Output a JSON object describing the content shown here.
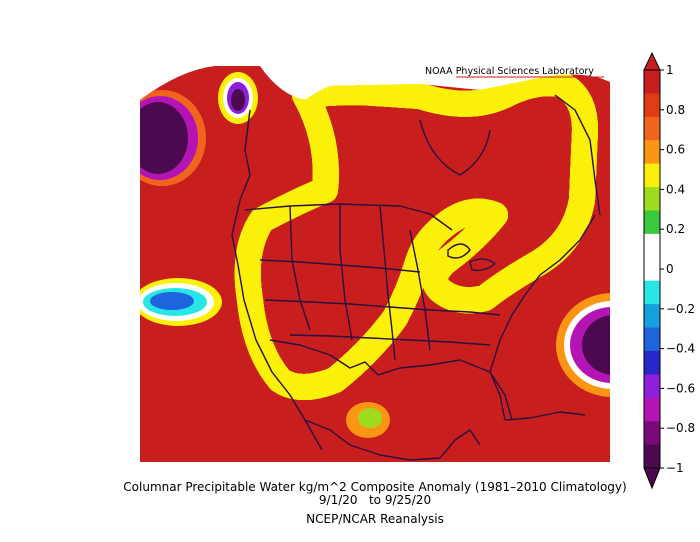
{
  "figure": {
    "lab_credit": "NOAA Physical Sciences Laboratory",
    "title": "Columnar Precipitable Water kg/m^2 Composite Anomaly (1981–2010 Climatology)",
    "date_range": "9/1/20   to 9/25/20",
    "source": "NCEP/NCAR Reanalysis"
  },
  "colorbar": {
    "range": [
      -1,
      1
    ],
    "tick_labels": [
      "1",
      "0.8",
      "0.6",
      "0.4",
      "0.2",
      "0",
      "−0.2",
      "−0.4",
      "−0.6",
      "−0.8",
      "−1"
    ],
    "colors_top_to_bottom": [
      "#c81e1e",
      "#e03c14",
      "#f0641e",
      "#fa9614",
      "#faf00a",
      "#a0dc1e",
      "#3cc83c",
      "#ffffff",
      "#ffffff",
      "#28e6e6",
      "#14a0dc",
      "#1e64dc",
      "#2828c8",
      "#8c1edc",
      "#b414b4",
      "#780a78",
      "#4b0a50"
    ]
  },
  "map": {
    "field": "precipitable_water_anomaly",
    "main_negative_color": "#4b0a50",
    "main_positive_color": "#c81e1e",
    "border_color": "#2a1040"
  }
}
